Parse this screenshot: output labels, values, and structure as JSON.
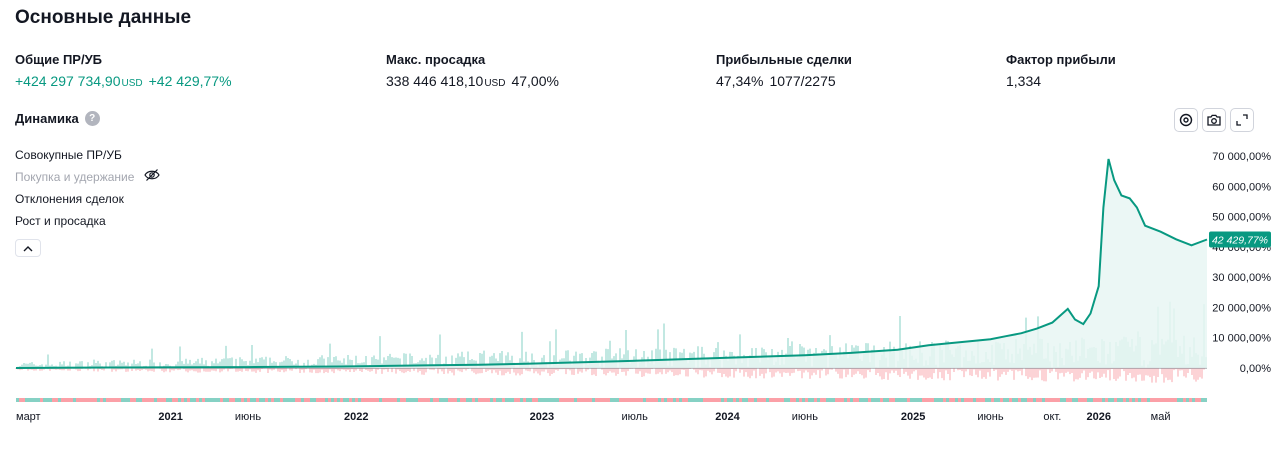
{
  "section_title": "Основные данные",
  "stats": [
    {
      "label": "Общие ПР/УБ",
      "value": "+424 297 734,90",
      "unit": "USD",
      "value2": "+42 429,77%",
      "positive": true
    },
    {
      "label": "Макс. просадка",
      "value": "338 446 418,10",
      "unit": "USD",
      "value2": "47,00%",
      "positive": false
    },
    {
      "label": "Прибыльные сделки",
      "value": "47,34%",
      "unit": "",
      "value2": "1077/2275",
      "positive": false
    },
    {
      "label": "Фактор прибыли",
      "value": "1,334",
      "unit": "",
      "value2": "",
      "positive": false
    }
  ],
  "dynamics": {
    "title": "Динамика",
    "help_icon": "question-icon",
    "toolbar_icons": [
      "settings-icon",
      "camera-icon",
      "expand-icon"
    ],
    "legend": [
      {
        "label": "Совокупные ПР/УБ",
        "muted": false
      },
      {
        "label": "Покупка и удержание",
        "muted": true,
        "icon": "eye-off-icon"
      },
      {
        "label": "Отклонения сделок",
        "muted": false
      },
      {
        "label": "Рост и просадка",
        "muted": false
      }
    ],
    "collapse_icon": "chevron-up-icon"
  },
  "chart_data": {
    "type": "line",
    "title": "",
    "xlabel": "",
    "ylabel": "",
    "ylim": [
      -5000,
      72000
    ],
    "y_ticks": [
      {
        "value": 0,
        "label": "0,00%"
      },
      {
        "value": 10000,
        "label": "10 000,00%"
      },
      {
        "value": 20000,
        "label": "20 000,00%"
      },
      {
        "value": 30000,
        "label": "30 000,00%"
      },
      {
        "value": 40000,
        "label": "40 000,00%"
      },
      {
        "value": 50000,
        "label": "50 000,00%"
      },
      {
        "value": 60000,
        "label": "60 000,00%"
      },
      {
        "value": 70000,
        "label": "70 000,00%"
      }
    ],
    "x_range": [
      "2020-03",
      "2026-08"
    ],
    "x_ticks": [
      {
        "date": "2020-03",
        "label": "март",
        "bold": false
      },
      {
        "date": "2021-01",
        "label": "2021",
        "bold": true
      },
      {
        "date": "2021-06",
        "label": "июнь",
        "bold": false
      },
      {
        "date": "2022-01",
        "label": "2022",
        "bold": true
      },
      {
        "date": "2023-01",
        "label": "2023",
        "bold": true
      },
      {
        "date": "2023-07",
        "label": "июль",
        "bold": false
      },
      {
        "date": "2024-01",
        "label": "2024",
        "bold": true
      },
      {
        "date": "2024-06",
        "label": "июнь",
        "bold": false
      },
      {
        "date": "2025-01",
        "label": "2025",
        "bold": true
      },
      {
        "date": "2025-06",
        "label": "июнь",
        "bold": false
      },
      {
        "date": "2025-10",
        "label": "окт.",
        "bold": false
      },
      {
        "date": "2026-01",
        "label": "2026",
        "bold": true
      },
      {
        "date": "2026-05",
        "label": "май",
        "bold": false
      }
    ],
    "series": [
      {
        "x": [
          "2020-03",
          "2020-06",
          "2020-09",
          "2020-12",
          "2021-03",
          "2021-06",
          "2021-09",
          "2021-12",
          "2022-03",
          "2022-06",
          "2022-09",
          "2022-12",
          "2023-03",
          "2023-06",
          "2023-09",
          "2023-12",
          "2024-03",
          "2024-06",
          "2024-09",
          "2024-12",
          "2025-02",
          "2025-04",
          "2025-06",
          "2025-07",
          "2025-08",
          "2025-09",
          "2025-10",
          "2025-11",
          "2025-11-15",
          "2025-12",
          "2025-12-15",
          "2026-01",
          "2026-01-10",
          "2026-01-20",
          "2026-02",
          "2026-02-15",
          "2026-03",
          "2026-03-15",
          "2026-04",
          "2026-05",
          "2026-06",
          "2026-07",
          "2026-08"
        ],
        "values": [
          0,
          100,
          150,
          200,
          250,
          300,
          400,
          500,
          700,
          900,
          1100,
          1400,
          1800,
          2200,
          2700,
          3200,
          3700,
          4200,
          5000,
          6000,
          7500,
          8500,
          9500,
          10500,
          11500,
          13000,
          15000,
          19500,
          16000,
          14500,
          18000,
          27000,
          53000,
          69000,
          62000,
          57000,
          56000,
          53000,
          47000,
          45000,
          42500,
          40500,
          42430
        ]
      }
    ],
    "last_value_label": "42 429,77%",
    "colors": {
      "line": "#089981",
      "area": "#e8f6f3",
      "pos_bars": "#22ab94",
      "neg_bars": "#f7525f",
      "label_bg": "#089981"
    }
  }
}
